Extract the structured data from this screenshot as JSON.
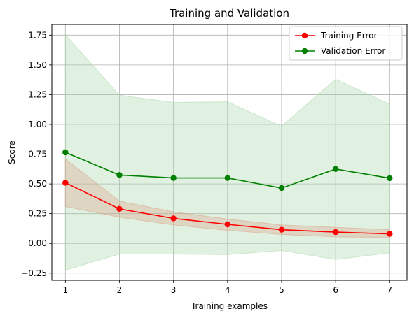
{
  "chart_data": {
    "type": "line",
    "title": "Training and Validation",
    "xlabel": "Training examples",
    "ylabel": "Score",
    "x": [
      1,
      2,
      3,
      4,
      5,
      6,
      7
    ],
    "xlim": [
      0.75,
      7.32
    ],
    "ylim": [
      -0.31,
      1.84
    ],
    "xticks": [
      1,
      2,
      3,
      4,
      5,
      6,
      7
    ],
    "xtick_labels": [
      "1",
      "2",
      "3",
      "4",
      "5",
      "6",
      "7"
    ],
    "yticks": [
      -0.25,
      0,
      0.25,
      0.5,
      0.75,
      1.0,
      1.25,
      1.5,
      1.75
    ],
    "ytick_labels": [
      "−0.25",
      "0.00",
      "0.25",
      "0.50",
      "0.75",
      "1.00",
      "1.25",
      "1.50",
      "1.75"
    ],
    "grid": true,
    "legend_position": "top-right",
    "series": [
      {
        "name": "Training Error",
        "color": "#ff0000",
        "band_color": "#d9a08a",
        "values": [
          0.51,
          0.29,
          0.21,
          0.16,
          0.115,
          0.095,
          0.08
        ],
        "band_low": [
          0.31,
          0.22,
          0.155,
          0.11,
          0.075,
          0.055,
          0.05
        ],
        "band_high": [
          0.71,
          0.355,
          0.265,
          0.205,
          0.155,
          0.135,
          0.115
        ]
      },
      {
        "name": "Validation Error",
        "color": "#008000",
        "band_color": "#a8d8a8",
        "values": [
          0.765,
          0.575,
          0.55,
          0.55,
          0.465,
          0.625,
          0.548
        ],
        "band_low": [
          -0.225,
          -0.09,
          -0.09,
          -0.095,
          -0.06,
          -0.135,
          -0.08
        ],
        "band_high": [
          1.755,
          1.245,
          1.185,
          1.19,
          0.985,
          1.38,
          1.17
        ]
      }
    ]
  }
}
